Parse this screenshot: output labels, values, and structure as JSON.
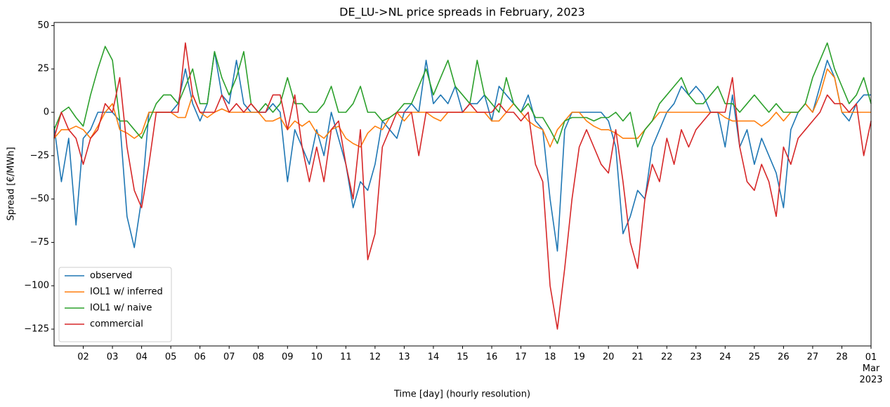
{
  "chart_data": {
    "type": "line",
    "title": "DE_LU->NL price spreads in February, 2023",
    "xlabel": "Time [day] (hourly resolution)",
    "ylabel": "Spread [€/MWh]",
    "legend": "lower left",
    "xlim": [
      1,
      29
    ],
    "ylim": [
      -134.7,
      51.8
    ],
    "xticks": [
      {
        "value": 2,
        "label": "02"
      },
      {
        "value": 3,
        "label": "03"
      },
      {
        "value": 4,
        "label": "04"
      },
      {
        "value": 5,
        "label": "05"
      },
      {
        "value": 6,
        "label": "06"
      },
      {
        "value": 7,
        "label": "07"
      },
      {
        "value": 8,
        "label": "08"
      },
      {
        "value": 9,
        "label": "09"
      },
      {
        "value": 10,
        "label": "10"
      },
      {
        "value": 11,
        "label": "11"
      },
      {
        "value": 12,
        "label": "12"
      },
      {
        "value": 13,
        "label": "13"
      },
      {
        "value": 14,
        "label": "14"
      },
      {
        "value": 15,
        "label": "15"
      },
      {
        "value": 16,
        "label": "16"
      },
      {
        "value": 17,
        "label": "17"
      },
      {
        "value": 18,
        "label": "18"
      },
      {
        "value": 19,
        "label": "19"
      },
      {
        "value": 20,
        "label": "20"
      },
      {
        "value": 21,
        "label": "21"
      },
      {
        "value": 22,
        "label": "22"
      },
      {
        "value": 23,
        "label": "23"
      },
      {
        "value": 24,
        "label": "24"
      },
      {
        "value": 25,
        "label": "25"
      },
      {
        "value": 26,
        "label": "26"
      },
      {
        "value": 27,
        "label": "27"
      },
      {
        "value": 28,
        "label": "28"
      },
      {
        "value": 29,
        "label": "01\nMar\n2023"
      }
    ],
    "yticks": [
      {
        "value": -125,
        "label": "−125"
      },
      {
        "value": -100,
        "label": "−100"
      },
      {
        "value": -75,
        "label": "−75"
      },
      {
        "value": -50,
        "label": "−50"
      },
      {
        "value": -25,
        "label": "−25"
      },
      0,
      25,
      50
    ],
    "x": [
      1,
      1.25,
      1.5,
      1.75,
      2,
      2.25,
      2.5,
      2.75,
      3,
      3.25,
      3.5,
      3.75,
      4,
      4.25,
      4.5,
      4.75,
      5,
      5.25,
      5.5,
      5.75,
      6,
      6.25,
      6.5,
      6.75,
      7,
      7.25,
      7.5,
      7.75,
      8,
      8.25,
      8.5,
      8.75,
      9,
      9.25,
      9.5,
      9.75,
      10,
      10.25,
      10.5,
      10.75,
      11,
      11.25,
      11.5,
      11.75,
      12,
      12.25,
      12.5,
      12.75,
      13,
      13.25,
      13.5,
      13.75,
      14,
      14.25,
      14.5,
      14.75,
      15,
      15.25,
      15.5,
      15.75,
      16,
      16.25,
      16.5,
      16.75,
      17,
      17.25,
      17.5,
      17.75,
      18,
      18.25,
      18.5,
      18.75,
      19,
      19.25,
      19.5,
      19.75,
      20,
      20.25,
      20.5,
      20.75,
      21,
      21.25,
      21.5,
      21.75,
      22,
      22.25,
      22.5,
      22.75,
      23,
      23.25,
      23.5,
      23.75,
      24,
      24.25,
      24.5,
      24.75,
      25,
      25.25,
      25.5,
      25.75,
      26,
      26.25,
      26.5,
      26.75,
      27,
      27.25,
      27.5,
      27.75,
      28,
      28.25,
      28.5,
      28.75,
      29
    ],
    "series": [
      {
        "name": "observed",
        "color": "#1f77b4",
        "values": [
          -8,
          -40,
          -15,
          -65,
          -15,
          -10,
          0,
          0,
          0,
          -5,
          -60,
          -78,
          -50,
          0,
          0,
          0,
          0,
          5,
          25,
          5,
          -5,
          5,
          35,
          10,
          5,
          30,
          5,
          0,
          0,
          0,
          5,
          0,
          -40,
          -10,
          -20,
          -30,
          -10,
          -25,
          0,
          -15,
          -30,
          -55,
          -40,
          -45,
          -30,
          -5,
          -10,
          -15,
          0,
          5,
          0,
          30,
          5,
          10,
          5,
          15,
          0,
          5,
          5,
          10,
          -5,
          15,
          10,
          5,
          0,
          10,
          -5,
          -10,
          -50,
          -80,
          -10,
          0,
          0,
          0,
          0,
          0,
          -5,
          -20,
          -70,
          -60,
          -45,
          -50,
          -20,
          -10,
          0,
          5,
          15,
          10,
          15,
          10,
          0,
          0,
          -20,
          10,
          -20,
          -10,
          -30,
          -15,
          -25,
          -35,
          -55,
          -10,
          0,
          5,
          0,
          15,
          30,
          20,
          0,
          -5,
          5,
          10,
          10
        ]
      },
      {
        "name": "IOL1 w/ inferred",
        "color": "#ff7f0e",
        "values": [
          -15,
          -10,
          -10,
          -8,
          -10,
          -15,
          -8,
          0,
          5,
          -10,
          -12,
          -15,
          -12,
          0,
          0,
          0,
          0,
          -3,
          -3,
          10,
          0,
          -3,
          0,
          2,
          0,
          0,
          0,
          0,
          0,
          -5,
          -5,
          -3,
          -10,
          -5,
          -8,
          -5,
          -12,
          -15,
          -10,
          -8,
          -15,
          -18,
          -20,
          -12,
          -8,
          -10,
          -3,
          0,
          -5,
          0,
          0,
          0,
          -3,
          -5,
          0,
          0,
          0,
          0,
          0,
          0,
          -5,
          -5,
          0,
          5,
          0,
          -5,
          -8,
          -10,
          -20,
          -10,
          -5,
          0,
          0,
          -5,
          -8,
          -10,
          -10,
          -12,
          -15,
          -15,
          -15,
          -10,
          -5,
          0,
          0,
          0,
          0,
          0,
          0,
          0,
          0,
          0,
          -3,
          -5,
          -5,
          -5,
          -5,
          -8,
          -5,
          0,
          -5,
          0,
          0,
          5,
          0,
          10,
          25,
          20,
          0,
          0,
          0,
          0,
          0
        ]
      },
      {
        "name": "IOL1 w/ naive",
        "color": "#2ca02c",
        "values": [
          -10,
          0,
          3,
          -3,
          -8,
          10,
          25,
          38,
          30,
          -5,
          -5,
          -10,
          -15,
          -5,
          5,
          10,
          10,
          5,
          15,
          25,
          5,
          5,
          35,
          20,
          10,
          20,
          35,
          5,
          0,
          5,
          0,
          5,
          20,
          5,
          5,
          0,
          0,
          5,
          15,
          0,
          0,
          5,
          15,
          0,
          0,
          -5,
          -3,
          0,
          5,
          5,
          15,
          25,
          10,
          20,
          30,
          15,
          10,
          5,
          30,
          10,
          5,
          0,
          20,
          5,
          0,
          5,
          -3,
          -3,
          -10,
          -18,
          -5,
          -3,
          -3,
          -3,
          -5,
          -3,
          -3,
          0,
          -5,
          0,
          -20,
          -10,
          -5,
          5,
          10,
          15,
          20,
          10,
          5,
          5,
          10,
          15,
          5,
          5,
          0,
          5,
          10,
          5,
          0,
          5,
          0,
          0,
          0,
          5,
          20,
          30,
          40,
          25,
          15,
          5,
          10,
          20,
          5
        ]
      },
      {
        "name": "commercial",
        "color": "#d62728",
        "values": [
          -15,
          0,
          -10,
          -15,
          -30,
          -15,
          -10,
          5,
          0,
          20,
          -20,
          -45,
          -55,
          -30,
          0,
          0,
          0,
          0,
          40,
          10,
          0,
          0,
          0,
          10,
          0,
          5,
          0,
          5,
          0,
          0,
          10,
          10,
          -10,
          10,
          -20,
          -40,
          -20,
          -40,
          -10,
          -5,
          -30,
          -50,
          -10,
          -85,
          -70,
          -20,
          -10,
          0,
          0,
          0,
          -25,
          0,
          0,
          0,
          0,
          0,
          0,
          5,
          0,
          0,
          0,
          5,
          0,
          0,
          -5,
          0,
          -30,
          -40,
          -100,
          -125,
          -90,
          -50,
          -20,
          -10,
          -20,
          -30,
          -35,
          -10,
          -40,
          -75,
          -90,
          -50,
          -30,
          -40,
          -15,
          -30,
          -10,
          -20,
          -10,
          -5,
          0,
          0,
          0,
          20,
          -20,
          -40,
          -45,
          -30,
          -40,
          -60,
          -20,
          -30,
          -15,
          -10,
          -5,
          0,
          10,
          5,
          5,
          0,
          5,
          -25,
          -5
        ]
      }
    ]
  }
}
